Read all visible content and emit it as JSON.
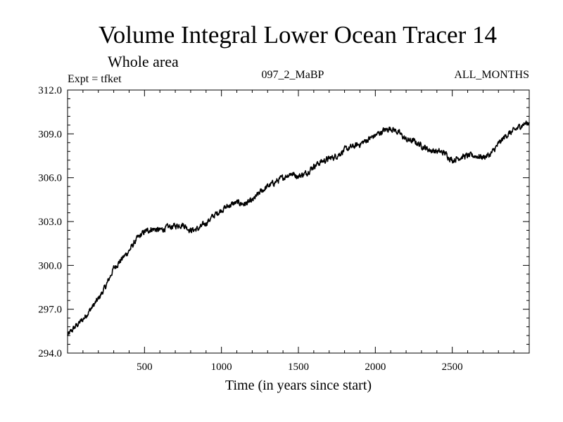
{
  "chart_data": {
    "type": "line",
    "title": "Volume Integral Lower Ocean Tracer 14",
    "subtitle": "Whole area",
    "expt_label": "Expt = tfket",
    "run_label": "097_2_MaBP",
    "period_label": "ALL_MONTHS",
    "xlabel": "Time (in years since start)",
    "ylabel": "",
    "xlim": [
      0,
      3000
    ],
    "ylim": [
      294.0,
      312.0
    ],
    "x_ticks": [
      500,
      1000,
      1500,
      2000,
      2500
    ],
    "x_tick_labels": [
      "500",
      "1000",
      "1500",
      "2000",
      "2500"
    ],
    "y_ticks": [
      294,
      297,
      300,
      303,
      306,
      309,
      312
    ],
    "y_tick_labels": [
      "294.0",
      "297.0",
      "300.0",
      "303.0",
      "306.0",
      "309.0",
      "312.0"
    ],
    "line_color": "#000000",
    "grid": false,
    "series": [
      {
        "x": [
          0,
          50,
          100,
          150,
          200,
          250,
          300,
          350,
          400,
          450,
          500,
          550,
          600,
          650,
          700,
          750,
          800,
          850,
          900,
          950,
          1000,
          1050,
          1100,
          1150,
          1200,
          1250,
          1300,
          1350,
          1400,
          1450,
          1500,
          1550,
          1600,
          1650,
          1700,
          1750,
          1800,
          1850,
          1900,
          1950,
          2000,
          2050,
          2100,
          2150,
          2200,
          2250,
          2300,
          2350,
          2400,
          2450,
          2500,
          2550,
          2600,
          2650,
          2700,
          2750,
          2800,
          2850,
          2900,
          2950,
          3000
        ],
        "values": [
          295.2,
          295.8,
          296.3,
          297.0,
          297.7,
          298.6,
          299.8,
          300.4,
          301.0,
          301.8,
          302.3,
          302.5,
          302.4,
          302.6,
          302.7,
          302.8,
          302.4,
          302.5,
          302.9,
          303.4,
          303.8,
          304.1,
          304.3,
          304.2,
          304.4,
          305.0,
          305.4,
          305.7,
          306.0,
          306.3,
          306.1,
          306.3,
          306.8,
          307.1,
          307.3,
          307.5,
          307.9,
          308.1,
          308.3,
          308.6,
          308.9,
          309.2,
          309.4,
          309.1,
          308.6,
          308.5,
          308.2,
          307.9,
          307.8,
          307.7,
          307.2,
          307.4,
          307.5,
          307.5,
          307.4,
          307.6,
          308.3,
          308.9,
          309.2,
          309.6,
          309.8
        ]
      }
    ]
  }
}
